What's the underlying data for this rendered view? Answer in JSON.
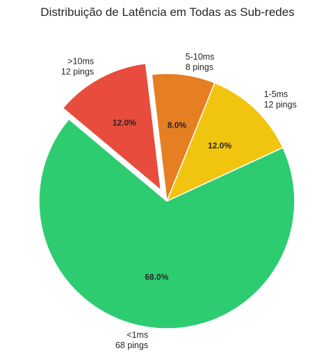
{
  "chart_data": {
    "type": "pie",
    "title": "Distribuição de Latência em Todas as Sub-redes",
    "slices": [
      {
        "category": "<1ms",
        "count_label": "68 pings",
        "value": 68,
        "percent_label": "68.0%",
        "color": "#2ecc71",
        "exploded": false
      },
      {
        "category": "1-5ms",
        "count_label": "12 pings",
        "value": 12,
        "percent_label": "12.0%",
        "color": "#f1c40f",
        "exploded": false
      },
      {
        "category": "5-10ms",
        "count_label": "8 pings",
        "value": 8,
        "percent_label": "8.0%",
        "color": "#e67e22",
        "exploded": false
      },
      {
        "category": ">10ms",
        "count_label": "12 pings",
        "value": 12,
        "percent_label": "12.0%",
        "color": "#e74c3c",
        "exploded": true
      }
    ],
    "start_angle_deg": 140,
    "direction": "counterclockwise",
    "legend": "none"
  }
}
